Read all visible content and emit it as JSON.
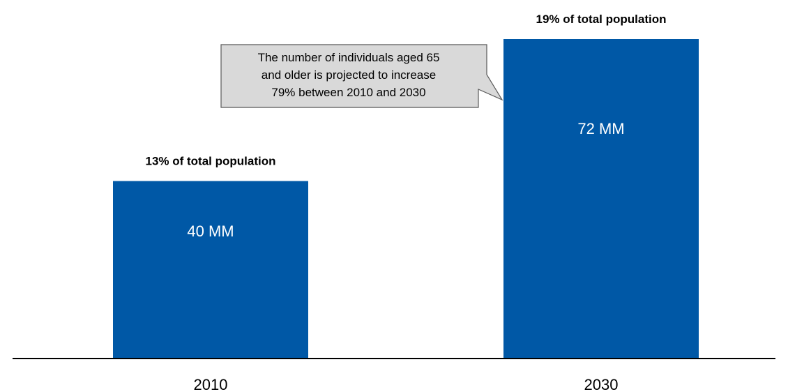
{
  "chart_data": {
    "type": "bar",
    "categories": [
      "2010",
      "2030"
    ],
    "values": [
      40,
      72
    ],
    "value_labels": [
      "40 MM",
      "72 MM"
    ],
    "top_labels": [
      "13% of total population",
      "19% of total population"
    ],
    "title": "",
    "xlabel": "",
    "ylabel": "",
    "ylim": [
      0,
      80
    ],
    "grid": false,
    "legend": "none"
  },
  "callout": {
    "lines": [
      "The number of individuals aged 65",
      "and older is projected to increase",
      "79% between 2010 and 2030"
    ]
  },
  "colors": {
    "bar": "#0058A6",
    "callout_fill": "#D9D9D9",
    "callout_stroke": "#595959",
    "axis": "#000000"
  }
}
